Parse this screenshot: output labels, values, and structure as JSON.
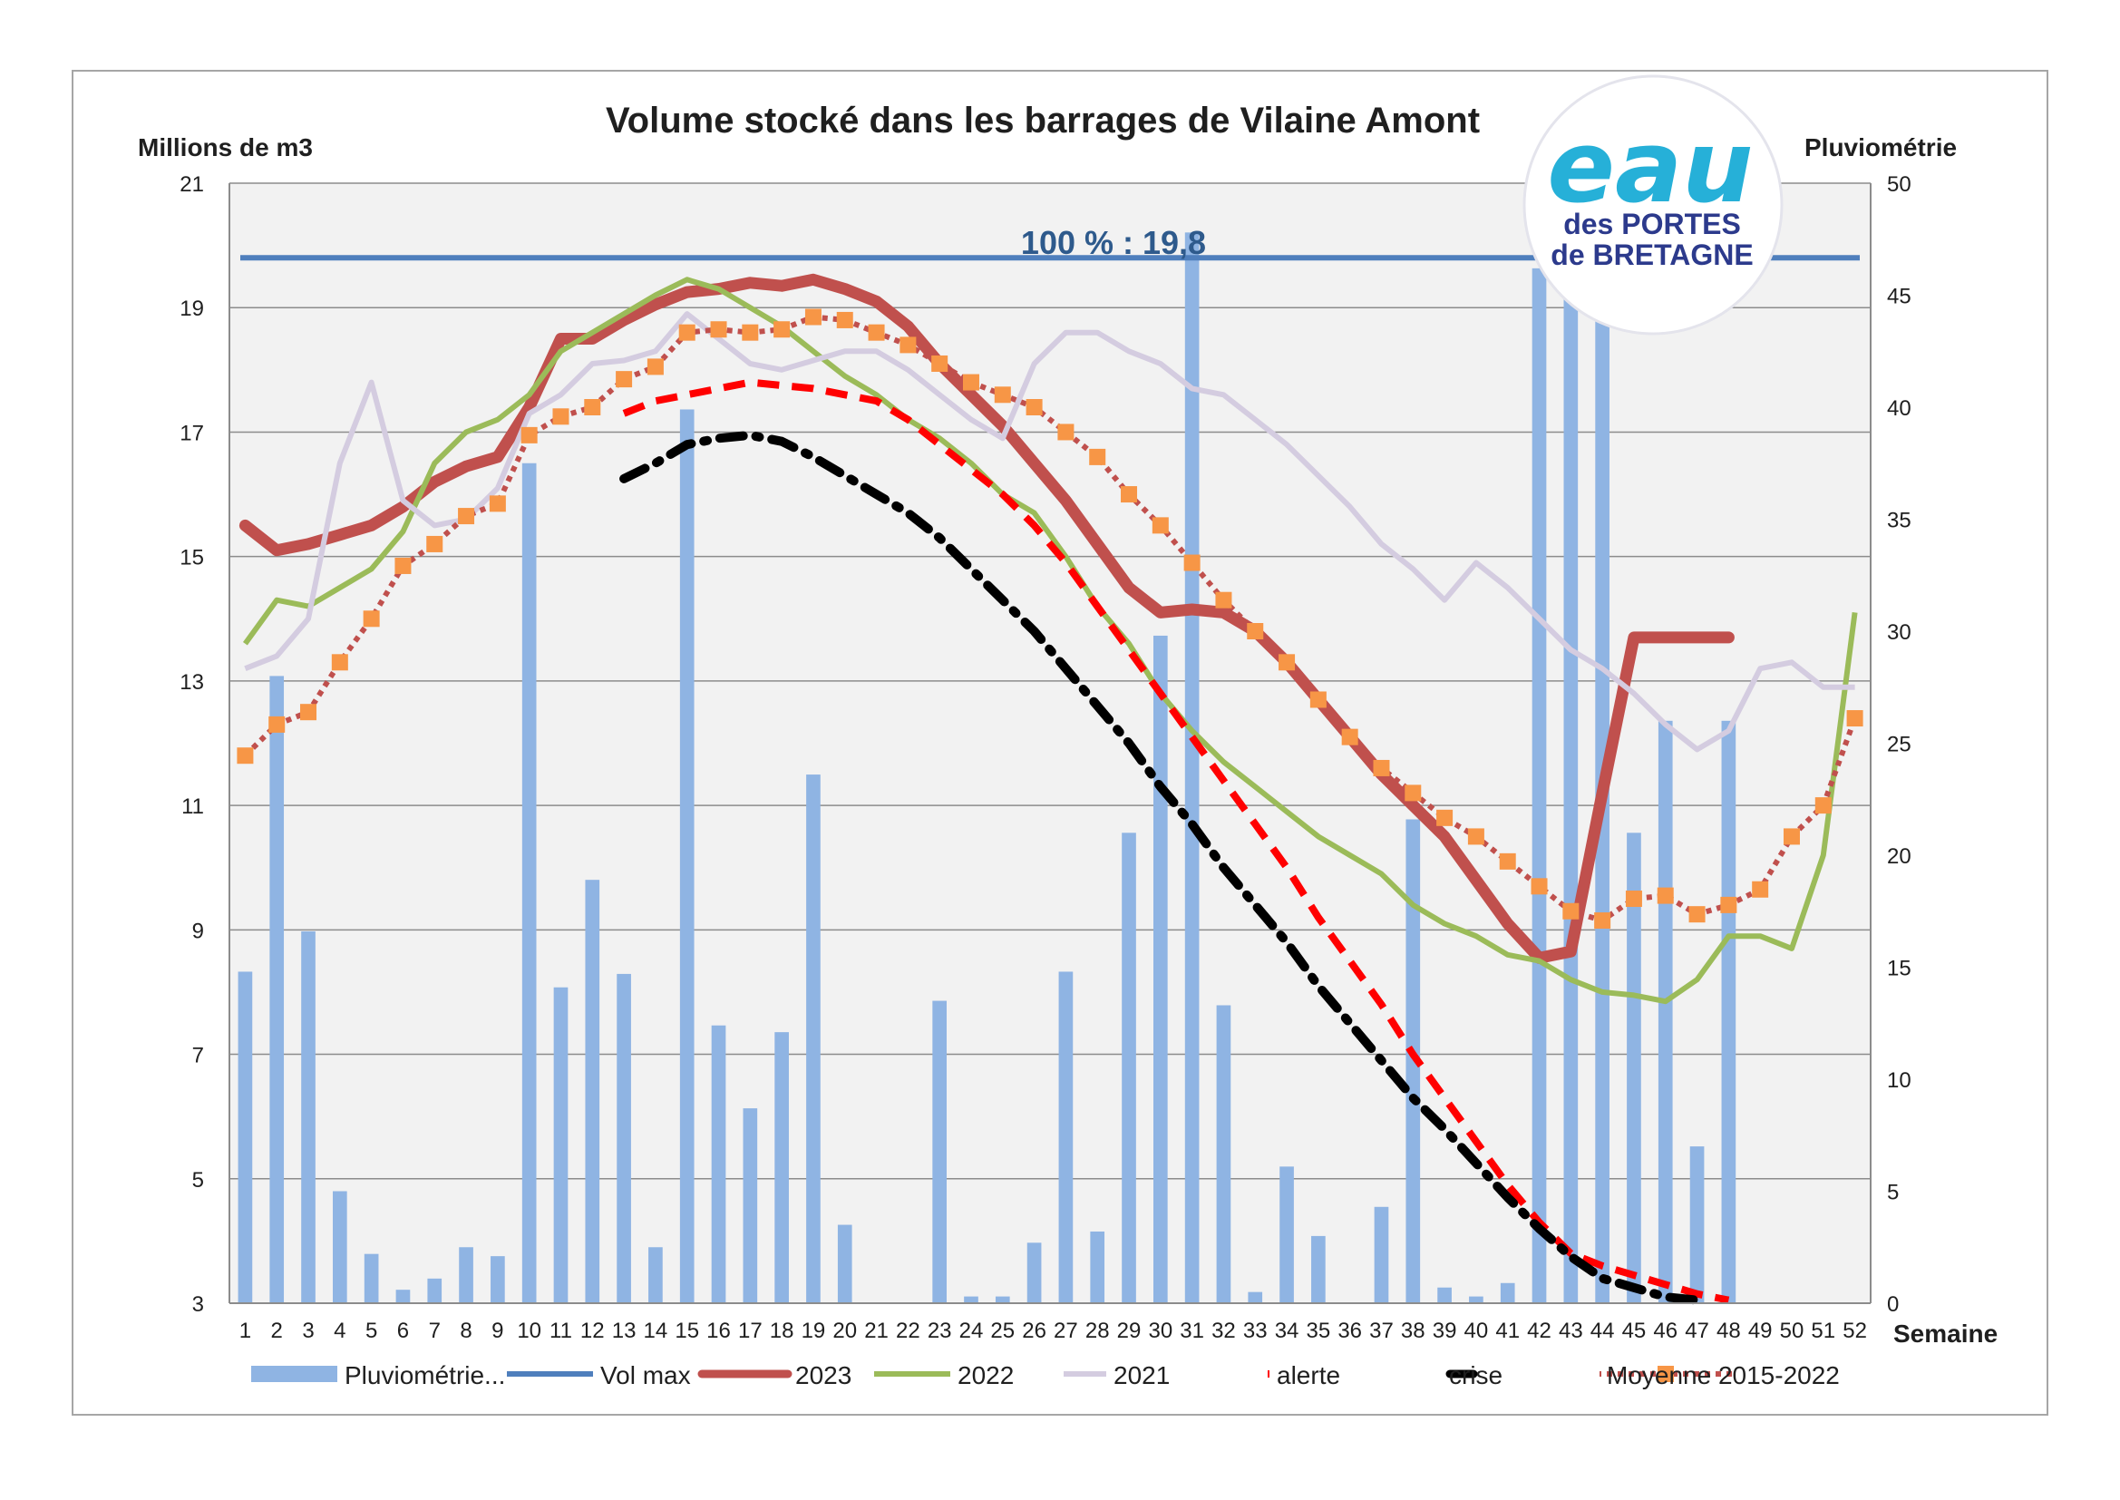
{
  "chart_data": {
    "type": "bar+line",
    "title": "Volume stocké dans les barrages de Vilaine Amont",
    "ylabel": "Millions de m3",
    "y2label": "Pluviométrie",
    "xlabel": "Semaine",
    "ylim": [
      3,
      21
    ],
    "yticks": [
      3,
      5,
      7,
      9,
      11,
      13,
      15,
      17,
      19,
      21
    ],
    "y2lim": [
      0,
      50
    ],
    "y2ticks": [
      0,
      5,
      10,
      15,
      20,
      25,
      30,
      35,
      40,
      45,
      50
    ],
    "x": [
      1,
      2,
      3,
      4,
      5,
      6,
      7,
      8,
      9,
      10,
      11,
      12,
      13,
      14,
      15,
      16,
      17,
      18,
      19,
      20,
      21,
      22,
      23,
      24,
      25,
      26,
      27,
      28,
      29,
      30,
      31,
      32,
      33,
      34,
      35,
      36,
      37,
      38,
      39,
      40,
      41,
      42,
      43,
      44,
      45,
      46,
      47,
      48,
      49,
      50,
      51,
      52
    ],
    "annotation": "100 % : 19,8",
    "logo": {
      "main": "eau",
      "line1": "des PORTES",
      "line2": "de BRETAGNE"
    },
    "grid": true,
    "legend_position": "bottom",
    "series": [
      {
        "name": "Pluviométrie...",
        "type": "bar",
        "axis": "right",
        "color": "#8fb4e3",
        "values": [
          14.8,
          28,
          16.6,
          5,
          2.2,
          0.6,
          1.1,
          2.5,
          2.1,
          37.5,
          14.1,
          18.9,
          14.7,
          2.5,
          39.9,
          12.4,
          8.7,
          12.1,
          23.6,
          3.5,
          null,
          null,
          13.5,
          0.3,
          0.3,
          2.7,
          14.8,
          3.2,
          21,
          29.8,
          47.8,
          13.3,
          0.5,
          6.1,
          3,
          null,
          4.3,
          21.6,
          0.7,
          0.3,
          0.9,
          46.2,
          46.1,
          46,
          21,
          26,
          7,
          26,
          null,
          null,
          null,
          null
        ]
      },
      {
        "name": "Vol max",
        "type": "line",
        "color": "#4f7fbd",
        "values": [
          19.8,
          19.8,
          19.8,
          19.8,
          19.8,
          19.8,
          19.8,
          19.8,
          19.8,
          19.8,
          19.8,
          19.8,
          19.8,
          19.8,
          19.8,
          19.8,
          19.8,
          19.8,
          19.8,
          19.8,
          19.8,
          19.8,
          19.8,
          19.8,
          19.8,
          19.8,
          19.8,
          19.8,
          19.8,
          19.8,
          19.8,
          19.8,
          19.8,
          19.8,
          19.8,
          19.8,
          19.8,
          19.8,
          19.8,
          19.8,
          19.8,
          19.8,
          19.8,
          19.8,
          19.8,
          19.8,
          19.8,
          19.8,
          19.8,
          19.8,
          19.8,
          19.8
        ]
      },
      {
        "name": "2023",
        "type": "line",
        "color": "#c0504d",
        "values": [
          15.5,
          15.1,
          15.2,
          15.35,
          15.5,
          15.8,
          16.2,
          16.45,
          16.6,
          17.4,
          18.5,
          18.5,
          18.8,
          19.05,
          19.25,
          19.3,
          19.4,
          19.35,
          19.45,
          19.3,
          19.1,
          18.7,
          18.1,
          17.6,
          17.1,
          16.5,
          15.9,
          15.2,
          14.5,
          14.1,
          14.15,
          14.1,
          13.8,
          13.3,
          12.7,
          12.1,
          11.5,
          11,
          10.5,
          9.8,
          9.1,
          8.55,
          8.65,
          11.2,
          13.7,
          13.7,
          13.7,
          13.7,
          null,
          null,
          null,
          null
        ]
      },
      {
        "name": "2022",
        "type": "line",
        "color": "#9bbb59",
        "values": [
          13.6,
          14.3,
          14.2,
          14.5,
          14.8,
          15.4,
          16.5,
          17,
          17.2,
          17.6,
          18.3,
          18.6,
          18.9,
          19.2,
          19.45,
          19.3,
          19,
          18.7,
          18.3,
          17.9,
          17.6,
          17.2,
          16.9,
          16.5,
          16,
          15.7,
          15,
          14.2,
          13.6,
          12.8,
          12.2,
          11.7,
          11.3,
          10.9,
          10.5,
          10.2,
          9.9,
          9.4,
          9.1,
          8.9,
          8.6,
          8.5,
          8.2,
          8,
          7.95,
          7.85,
          8.2,
          8.9,
          8.9,
          8.7,
          10.2,
          14.1
        ]
      },
      {
        "name": "2021",
        "type": "line",
        "color": "#d4cce0",
        "values": [
          13.2,
          13.4,
          14,
          16.5,
          17.8,
          15.9,
          15.5,
          15.6,
          16.1,
          17.3,
          17.6,
          18.1,
          18.15,
          18.3,
          18.9,
          18.5,
          18.1,
          18,
          18.15,
          18.3,
          18.3,
          18,
          17.6,
          17.2,
          16.9,
          18.1,
          18.6,
          18.6,
          18.3,
          18.1,
          17.7,
          17.6,
          17.2,
          16.8,
          16.3,
          15.8,
          15.2,
          14.8,
          14.3,
          14.9,
          14.5,
          14,
          13.5,
          13.2,
          12.8,
          12.3,
          11.9,
          12.2,
          13.2,
          13.3,
          12.9,
          12.9
        ]
      },
      {
        "name": "alerte",
        "type": "line",
        "style": "dashed",
        "color": "#ff0000",
        "values": [
          null,
          null,
          null,
          null,
          null,
          null,
          null,
          null,
          null,
          null,
          null,
          null,
          17.3,
          17.5,
          17.6,
          17.7,
          17.8,
          17.75,
          17.7,
          17.6,
          17.5,
          17.2,
          16.8,
          16.4,
          16,
          15.5,
          14.9,
          14.2,
          13.5,
          12.8,
          12.1,
          11.4,
          10.7,
          10,
          9.2,
          8.5,
          7.8,
          7,
          6.3,
          5.6,
          4.9,
          4.3,
          3.8,
          3.6,
          3.45,
          3.3,
          3.15,
          3.05,
          null,
          null,
          null,
          null
        ]
      },
      {
        "name": "crise",
        "type": "line",
        "style": "dashdot",
        "color": "#000000",
        "values": [
          null,
          null,
          null,
          null,
          null,
          null,
          null,
          null,
          null,
          null,
          null,
          null,
          16.25,
          16.5,
          16.8,
          16.9,
          16.95,
          16.85,
          16.6,
          16.3,
          16,
          15.7,
          15.3,
          14.8,
          14.3,
          13.8,
          13.2,
          12.6,
          12,
          11.3,
          10.7,
          10,
          9.4,
          8.8,
          8.1,
          7.5,
          6.9,
          6.3,
          5.8,
          5.25,
          4.7,
          4.2,
          3.75,
          3.4,
          3.25,
          3.1,
          3.05,
          null,
          null,
          null,
          null,
          null
        ]
      },
      {
        "name": "Moyenne 2015-2022",
        "type": "line",
        "style": "dotted-markers",
        "color": "#c0504d",
        "marker_color": "#f79646",
        "values": [
          11.8,
          12.3,
          12.5,
          13.3,
          14,
          14.85,
          15.2,
          15.65,
          15.85,
          16.95,
          17.25,
          17.4,
          17.85,
          18.05,
          18.6,
          18.65,
          18.6,
          18.65,
          18.85,
          18.8,
          18.6,
          18.4,
          18.1,
          17.8,
          17.6,
          17.4,
          17,
          16.6,
          16,
          15.5,
          14.9,
          14.3,
          13.8,
          13.3,
          12.7,
          12.1,
          11.6,
          11.2,
          10.8,
          10.5,
          10.1,
          9.7,
          9.3,
          9.15,
          9.5,
          9.55,
          9.25,
          9.4,
          9.65,
          10.5,
          11,
          12.4
        ]
      }
    ]
  }
}
